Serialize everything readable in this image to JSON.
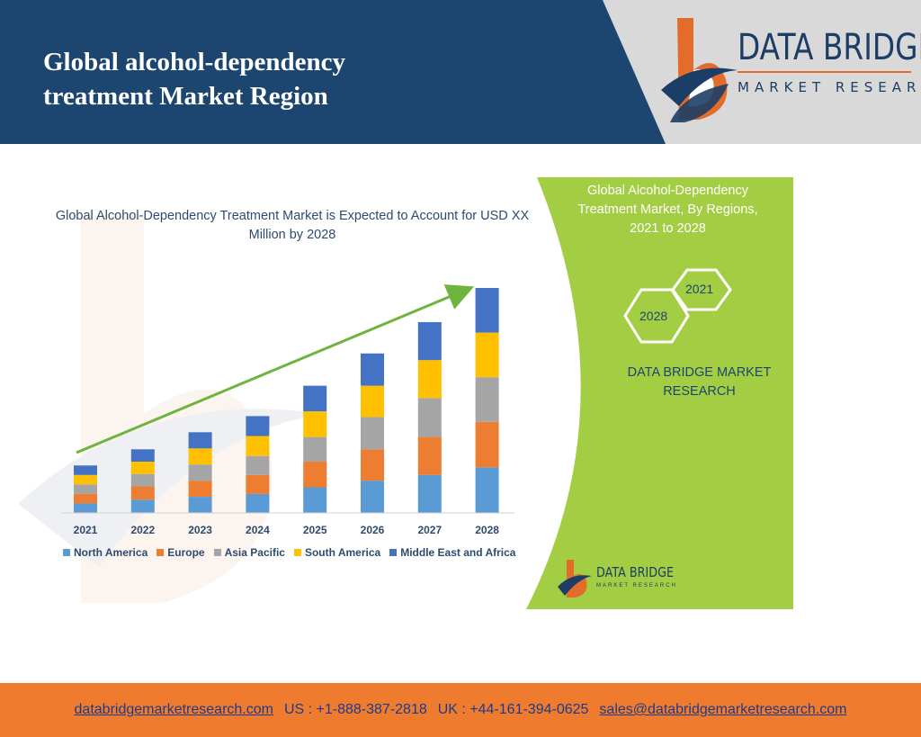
{
  "header": {
    "title": "Global alcohol-dependency\ntreatment  Market Region"
  },
  "brand": {
    "name": "DATA BRIDGE",
    "tagline": "MARKET RESEARCH",
    "colors": {
      "navy": "#1c4670",
      "orange": "#e46c2b",
      "green": "#a3cd42"
    }
  },
  "chart_data": {
    "type": "bar",
    "stacked": true,
    "title": "Global Alcohol-Dependency Treatment Market is Expected to Account for USD XX Million by 2028",
    "categories": [
      "2021",
      "2022",
      "2023",
      "2024",
      "2025",
      "2026",
      "2027",
      "2028"
    ],
    "series": [
      {
        "name": "North America",
        "color": "#5b9bd5",
        "values": [
          10,
          14,
          17,
          20,
          27,
          34,
          40,
          48
        ]
      },
      {
        "name": "Europe",
        "color": "#ed7d31",
        "values": [
          10,
          14,
          17,
          20,
          27,
          33,
          40,
          48
        ]
      },
      {
        "name": "Asia Pacific",
        "color": "#a5a5a5",
        "values": [
          10,
          13,
          17,
          20,
          26,
          34,
          41,
          47
        ]
      },
      {
        "name": "South America",
        "color": "#ffc000",
        "values": [
          10,
          13,
          17,
          21,
          27,
          33,
          40,
          47
        ]
      },
      {
        "name": "Middle East and Africa",
        "color": "#4472c4",
        "values": [
          10,
          13,
          17,
          21,
          27,
          34,
          40,
          47
        ]
      }
    ],
    "legend": "bottom",
    "grid": false,
    "trend_arrow": true
  },
  "panel": {
    "title": "Global Alcohol-Dependency\nTreatment Market, By Regions,\n2021 to 2028",
    "hex_start": "2021",
    "hex_end": "2028",
    "brand": "DATA BRIDGE MARKET\nRESEARCH",
    "mini_logo_name": "DATA BRIDGE",
    "mini_logo_tag": "MARKET RESEARCH"
  },
  "footer": {
    "website": "databridgemarketresearch.com",
    "us_phone": "US : +1-888-387-2818",
    "uk_phone": "UK : +44-161-394-0625",
    "email": "sales@databridgemarketresearch.com"
  }
}
